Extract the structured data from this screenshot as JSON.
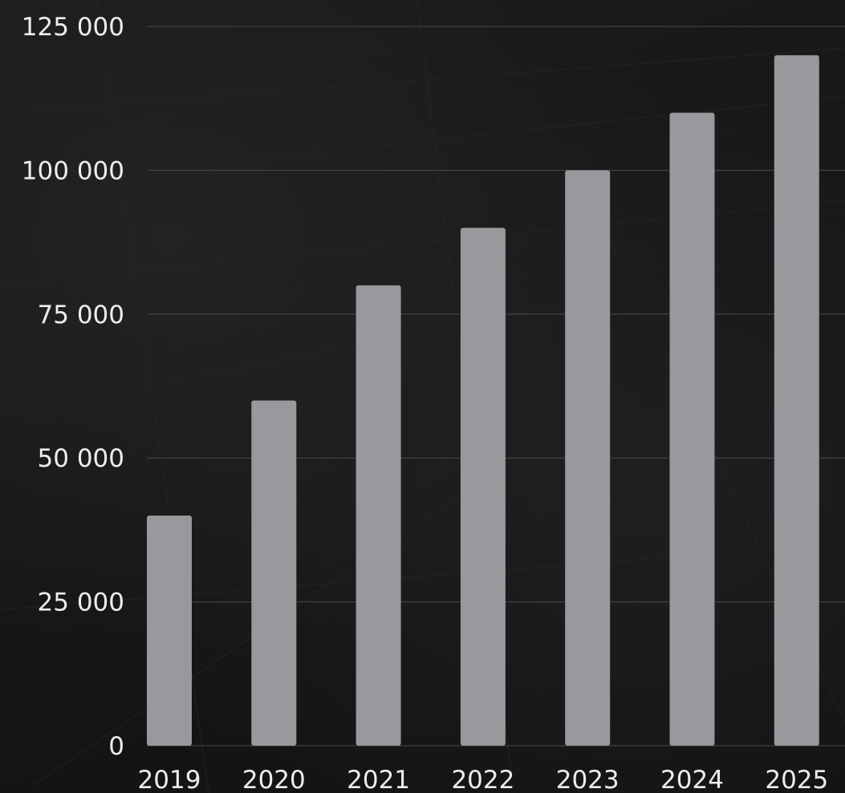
{
  "chart_data": {
    "type": "bar",
    "categories": [
      "2019",
      "2020",
      "2021",
      "2022",
      "2023",
      "2024",
      "2025"
    ],
    "values": [
      40000,
      60000,
      80000,
      90000,
      100000,
      110000,
      120000
    ],
    "title": "",
    "xlabel": "",
    "ylabel": "",
    "ylim": [
      0,
      125000
    ],
    "yticks": [
      0,
      25000,
      50000,
      75000,
      100000,
      125000
    ],
    "ytick_labels": [
      "0",
      "25 000",
      "50 000",
      "75 000",
      "100 000",
      "125 000"
    ],
    "grid": true,
    "legend": "none"
  },
  "colors": {
    "bar": "#98999d",
    "grid": "#4a4a4a",
    "text": "#ededed",
    "background": "#141414"
  }
}
